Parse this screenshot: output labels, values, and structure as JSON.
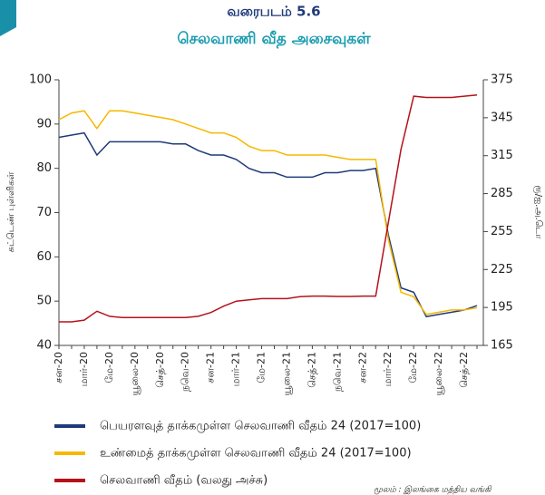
{
  "chart_data": {
    "type": "line",
    "title": "வரைபடம் 5.6",
    "subtitle": "செலவாணி வீத அசைவுகள்",
    "y_label": "சுட்டெண் புள்ளிகள்",
    "y2_label": "ரூ/ஐ.அ.டொ",
    "source": "மூலம் : இலங்கை மத்திய வங்கி",
    "categories": [
      "சன-20",
      null,
      "மார்-20",
      null,
      "மே-20",
      null,
      "யூலை-20",
      null,
      "செத்-20",
      null,
      "நவெ-20",
      null,
      "சன-21",
      null,
      "மார்-21",
      null,
      "மே-21",
      null,
      "யூலை-21",
      null,
      "செத்-21",
      null,
      "நவெ-21",
      null,
      "சன-22",
      null,
      "மார்-22",
      null,
      "மே-22",
      null,
      "யூலை-22",
      null,
      "செத்-22",
      null
    ],
    "series": [
      {
        "name": "பெயரளவுத் தாக்கமுள்ள செலவாணி வீதம் 24 (2017=100)",
        "color": "#1f3a7a",
        "values": [
          87,
          87.5,
          88,
          83,
          86,
          86,
          86,
          86,
          86,
          85.5,
          85.5,
          84,
          83,
          83,
          82,
          80,
          79,
          79,
          78,
          78,
          78,
          79,
          79,
          79.5,
          79.5,
          80,
          65,
          53,
          52,
          46.5,
          47,
          47.5,
          48,
          49
        ]
      },
      {
        "name": "உண்மைத் தாக்கமுள்ள செலவாணி வீதம் 24 (2017=100)",
        "color": "#f5b800",
        "values": [
          91,
          92.5,
          93,
          89,
          93,
          93,
          92.5,
          92,
          91.5,
          91,
          90,
          89,
          88,
          88,
          87,
          85,
          84,
          84,
          83,
          83,
          83,
          83,
          82.5,
          82,
          82,
          82,
          64,
          52,
          51,
          47,
          47.5,
          48,
          48,
          48.5
        ]
      },
      {
        "name": "செலவாணி வீதம் (வலது அச்சு)",
        "color": "#b5121b",
        "axis": "y2",
        "values": [
          183.6,
          183.6,
          185,
          192,
          188,
          187,
          187,
          187,
          187,
          187,
          187,
          188,
          191,
          196,
          200,
          201,
          202,
          202,
          202,
          203.5,
          204,
          204,
          203.7,
          203.7,
          204,
          204,
          262,
          320,
          362,
          361,
          361,
          361,
          362,
          363
        ]
      }
    ],
    "ylim": [
      40,
      100
    ],
    "yticks": [
      40,
      50,
      60,
      70,
      80,
      90,
      100
    ],
    "y2lim": [
      165,
      375
    ],
    "y2ticks": [
      165,
      195,
      225,
      255,
      285,
      315,
      345,
      375
    ]
  }
}
